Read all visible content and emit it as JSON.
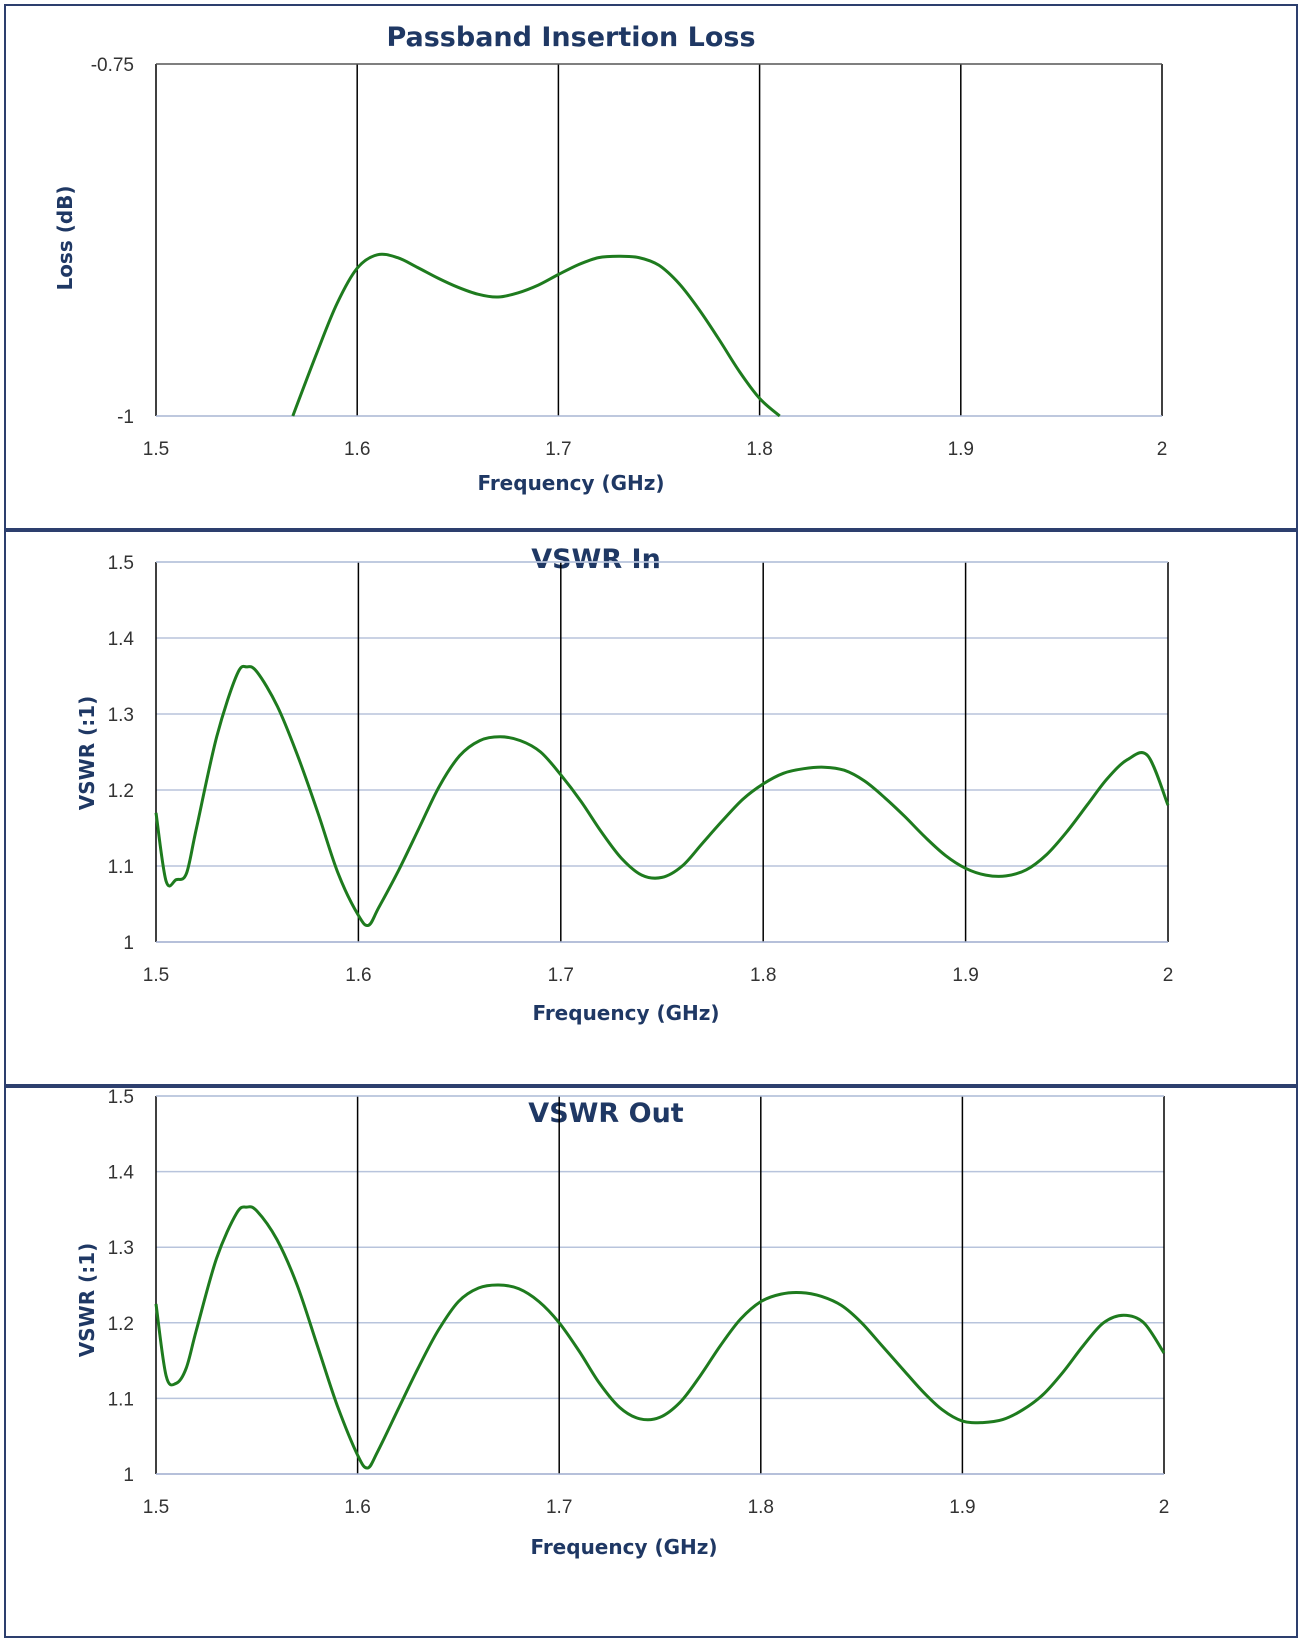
{
  "colors": {
    "series": "#1e7b1e",
    "title": "#1f3864",
    "major_grid_x": "#000000",
    "minor_grid_y": "#b8c4dc",
    "frame": "#2d3f6e"
  },
  "chart_data": [
    {
      "type": "line",
      "title": "Passband Insertion Loss",
      "xlabel": "Frequency (GHz)",
      "ylabel": "Loss (dB)",
      "xlim": [
        1.5,
        2
      ],
      "ylim": [
        -1,
        -0.75
      ],
      "xticks": [
        "1.5",
        "1.6",
        "1.7",
        "1.8",
        "1.9",
        "2"
      ],
      "yticks": [
        "-0.75",
        "-1"
      ],
      "grid": "vertical",
      "series": [
        {
          "x": [
            1.568,
            1.58,
            1.59,
            1.6,
            1.61,
            1.62,
            1.63,
            1.64,
            1.65,
            1.66,
            1.67,
            1.68,
            1.69,
            1.7,
            1.71,
            1.72,
            1.73,
            1.74,
            1.75,
            1.76,
            1.77,
            1.78,
            1.79,
            1.8,
            1.81
          ],
          "y": [
            -1.0,
            -0.955,
            -0.92,
            -0.895,
            -0.8855,
            -0.8875,
            -0.8945,
            -0.902,
            -0.9085,
            -0.9135,
            -0.9155,
            -0.9125,
            -0.907,
            -0.8995,
            -0.8925,
            -0.8875,
            -0.8865,
            -0.8875,
            -0.893,
            -0.906,
            -0.9245,
            -0.946,
            -0.9685,
            -0.9875,
            -1.0
          ]
        }
      ]
    },
    {
      "type": "line",
      "title": "VSWR In",
      "xlabel": "Frequency (GHz)",
      "ylabel": "VSWR (:1)",
      "xlim": [
        1.5,
        2
      ],
      "ylim": [
        1,
        1.5
      ],
      "xticks": [
        "1.5",
        "1.6",
        "1.7",
        "1.8",
        "1.9",
        "2"
      ],
      "yticks": [
        "1",
        "1.1",
        "1.2",
        "1.3",
        "1.4",
        "1.5"
      ],
      "grid": "both",
      "series": [
        {
          "x": [
            1.5,
            1.505,
            1.51,
            1.515,
            1.52,
            1.53,
            1.54,
            1.545,
            1.55,
            1.56,
            1.57,
            1.58,
            1.59,
            1.6,
            1.605,
            1.61,
            1.62,
            1.63,
            1.64,
            1.65,
            1.66,
            1.67,
            1.68,
            1.69,
            1.7,
            1.71,
            1.72,
            1.73,
            1.74,
            1.75,
            1.76,
            1.77,
            1.78,
            1.79,
            1.8,
            1.81,
            1.82,
            1.83,
            1.84,
            1.85,
            1.86,
            1.87,
            1.88,
            1.89,
            1.9,
            1.91,
            1.92,
            1.93,
            1.94,
            1.95,
            1.96,
            1.97,
            1.98,
            1.99,
            2.0
          ],
          "y": [
            1.17,
            1.08,
            1.082,
            1.09,
            1.15,
            1.27,
            1.352,
            1.362,
            1.355,
            1.31,
            1.245,
            1.17,
            1.09,
            1.035,
            1.022,
            1.045,
            1.095,
            1.15,
            1.205,
            1.245,
            1.265,
            1.27,
            1.265,
            1.25,
            1.22,
            1.185,
            1.145,
            1.11,
            1.088,
            1.085,
            1.1,
            1.13,
            1.16,
            1.188,
            1.208,
            1.222,
            1.228,
            1.23,
            1.226,
            1.212,
            1.19,
            1.165,
            1.138,
            1.114,
            1.097,
            1.088,
            1.087,
            1.095,
            1.115,
            1.145,
            1.18,
            1.215,
            1.24,
            1.245,
            1.18
          ]
        }
      ]
    },
    {
      "type": "line",
      "title": "VSWR Out",
      "xlabel": "Frequency (GHz)",
      "ylabel": "VSWR (:1)",
      "xlim": [
        1.5,
        2
      ],
      "ylim": [
        1,
        1.5
      ],
      "xticks": [
        "1.5",
        "1.6",
        "1.7",
        "1.8",
        "1.9",
        "2"
      ],
      "yticks": [
        "1",
        "1.1",
        "1.2",
        "1.3",
        "1.4",
        "1.5"
      ],
      "grid": "both",
      "series": [
        {
          "x": [
            1.5,
            1.505,
            1.51,
            1.515,
            1.52,
            1.53,
            1.54,
            1.545,
            1.55,
            1.56,
            1.57,
            1.58,
            1.59,
            1.6,
            1.605,
            1.61,
            1.62,
            1.63,
            1.64,
            1.65,
            1.66,
            1.67,
            1.68,
            1.69,
            1.7,
            1.71,
            1.72,
            1.73,
            1.74,
            1.75,
            1.76,
            1.77,
            1.78,
            1.79,
            1.8,
            1.81,
            1.82,
            1.83,
            1.84,
            1.85,
            1.86,
            1.87,
            1.88,
            1.89,
            1.9,
            1.91,
            1.92,
            1.93,
            1.94,
            1.95,
            1.96,
            1.97,
            1.98,
            1.99,
            2.0
          ],
          "y": [
            1.225,
            1.13,
            1.12,
            1.14,
            1.19,
            1.285,
            1.345,
            1.353,
            1.348,
            1.31,
            1.25,
            1.17,
            1.09,
            1.025,
            1.008,
            1.03,
            1.085,
            1.14,
            1.19,
            1.228,
            1.246,
            1.25,
            1.245,
            1.228,
            1.2,
            1.162,
            1.12,
            1.088,
            1.073,
            1.075,
            1.095,
            1.13,
            1.17,
            1.205,
            1.228,
            1.238,
            1.24,
            1.235,
            1.223,
            1.2,
            1.17,
            1.14,
            1.11,
            1.085,
            1.07,
            1.068,
            1.072,
            1.085,
            1.105,
            1.135,
            1.17,
            1.2,
            1.21,
            1.2,
            1.16
          ]
        }
      ]
    }
  ]
}
